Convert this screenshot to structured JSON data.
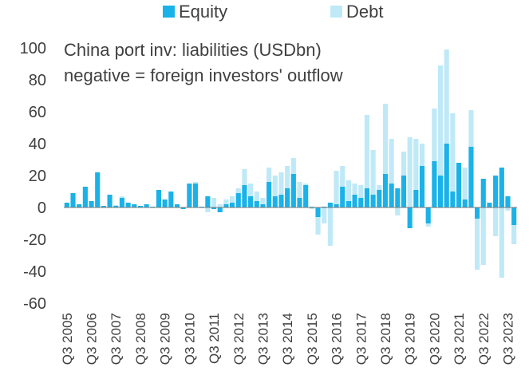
{
  "chart_data": {
    "type": "bar",
    "stacked": true,
    "title": "",
    "xlabel": "",
    "ylabel": "",
    "annotation_lines": [
      "China port inv: liabilities (USDbn)",
      "negative = foreign investors' outflow"
    ],
    "ylim": [
      -60,
      100
    ],
    "yticks": [
      -60,
      -40,
      -20,
      0,
      20,
      40,
      60,
      80,
      100
    ],
    "grid": false,
    "legend_position": "top",
    "x_tick_labels": [
      "Q3 2005",
      "Q3 2006",
      "Q3 2007",
      "Q3 2008",
      "Q3 2009",
      "Q3 2010",
      "Q3 2011",
      "Q3 2012",
      "Q3 2013",
      "Q3 2014",
      "Q3 2015",
      "Q3 2016",
      "Q3 2017",
      "Q3 2018",
      "Q3 2019",
      "Q3 2020",
      "Q3 2021",
      "Q3 2022",
      "Q3 2023"
    ],
    "x_tick_every": 4,
    "series": [
      {
        "name": "Equity",
        "color": "#1ab2e8",
        "values": [
          3,
          9,
          2,
          13,
          4,
          22,
          1,
          8,
          1,
          6,
          3,
          2,
          1,
          2,
          0.5,
          11,
          5,
          10,
          2,
          -1,
          15,
          15,
          0.5,
          7,
          -1,
          -3,
          2,
          3,
          9,
          14,
          7,
          4,
          2,
          16,
          7,
          8,
          12,
          21,
          6,
          14,
          0.5,
          -6,
          0.5,
          3,
          2,
          13,
          4,
          8,
          6,
          12,
          8,
          11,
          21,
          15,
          12,
          20,
          -13,
          11,
          26,
          -10,
          29,
          20,
          40,
          10,
          28,
          5,
          38,
          -7,
          18,
          3,
          20,
          25,
          7,
          -11
        ]
      },
      {
        "name": "Debt",
        "color": "#bfe9f7",
        "values": [
          0,
          0,
          0,
          0,
          0,
          0,
          0,
          0,
          0.5,
          1,
          0,
          0,
          0,
          0,
          0,
          0,
          0,
          0,
          0,
          0,
          0,
          1,
          0,
          -3,
          6,
          2,
          3,
          4,
          3,
          10,
          8,
          6,
          4,
          9,
          13,
          14,
          14,
          10,
          10,
          1,
          -1,
          -11,
          -10,
          -24,
          21,
          13,
          13,
          7,
          8,
          46,
          28,
          3,
          44,
          28,
          -5,
          15,
          44,
          32,
          14,
          -2,
          33,
          69,
          59,
          49,
          0,
          20,
          23,
          -32,
          -36,
          0,
          -18,
          -44,
          -2,
          -12
        ]
      }
    ]
  }
}
